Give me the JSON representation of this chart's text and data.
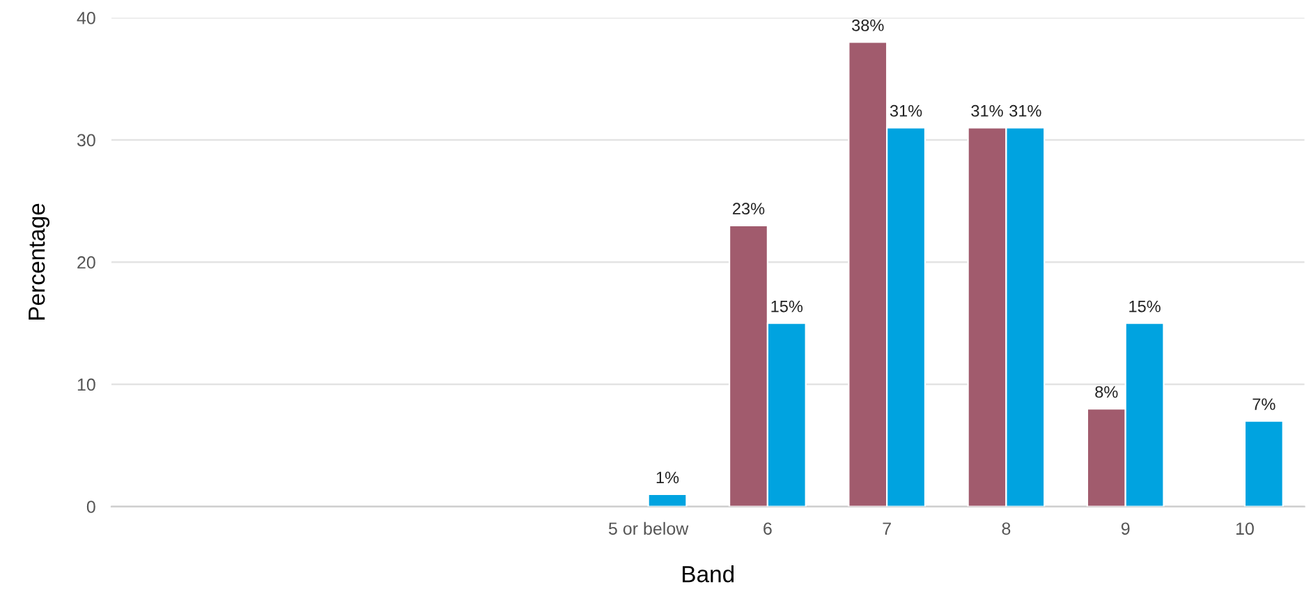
{
  "chart_data": {
    "type": "bar",
    "xlabel": "Band",
    "ylabel": "Percentage",
    "categories": [
      null,
      null,
      null,
      null,
      "5 or below",
      "6",
      "7",
      "8",
      "9",
      "10"
    ],
    "series": [
      {
        "color": "#a15b6d",
        "values": [
          null,
          null,
          null,
          null,
          null,
          23,
          38,
          31,
          8,
          null
        ],
        "value_labels": [
          null,
          null,
          null,
          null,
          null,
          "23%",
          "38%",
          "31%",
          "8%",
          null
        ]
      },
      {
        "color": "#00a3e0",
        "values": [
          null,
          null,
          null,
          null,
          1,
          15,
          31,
          31,
          15,
          7
        ],
        "value_labels": [
          null,
          null,
          null,
          null,
          "1%",
          "15%",
          "31%",
          "31%",
          "15%",
          "7%"
        ]
      }
    ],
    "ylim": [
      0,
      40
    ],
    "yticks": [
      0,
      10,
      20,
      30,
      40
    ],
    "grid": "y"
  }
}
